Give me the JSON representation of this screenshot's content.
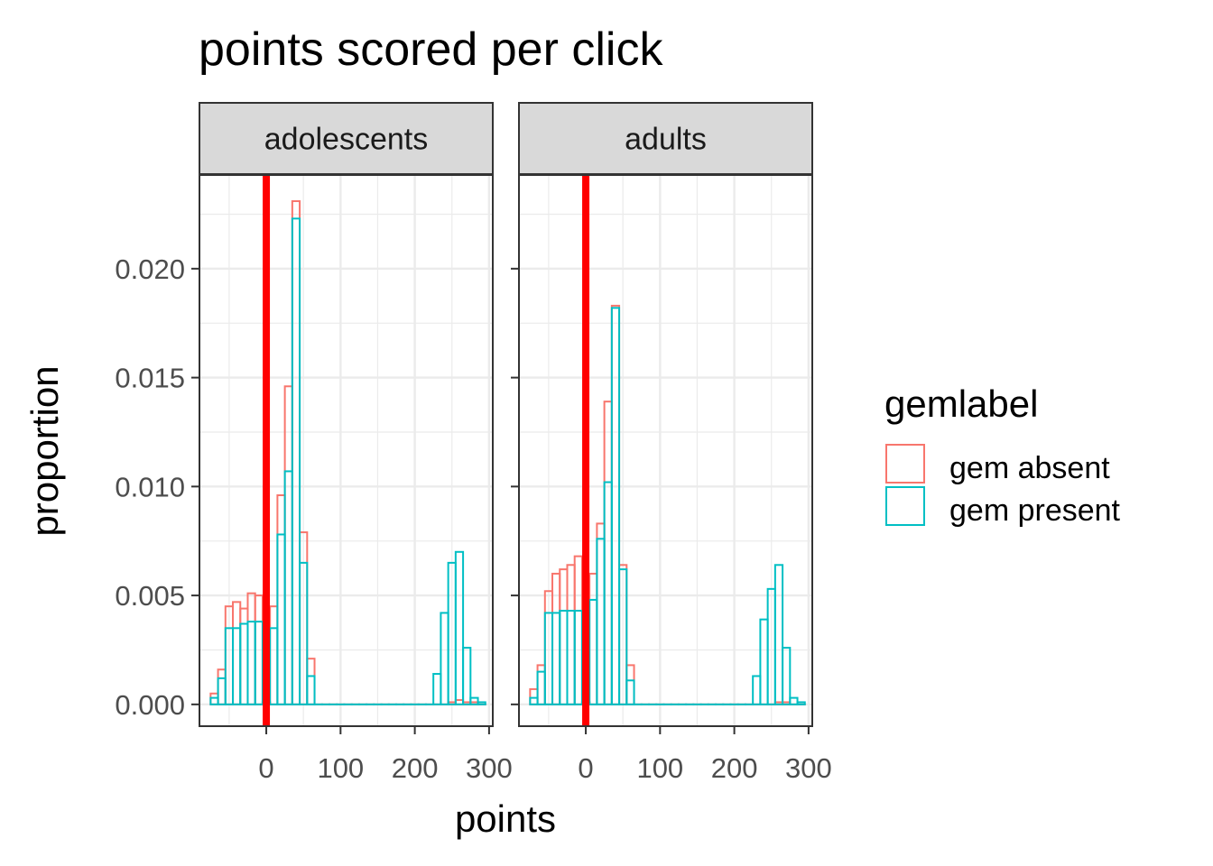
{
  "chart_data": {
    "type": "bar",
    "subtype": "faceted step histogram",
    "title": "points scored per click",
    "xlabel": "points",
    "ylabel": "proportion",
    "xlim": [
      -90,
      305
    ],
    "ylim": [
      -0.001,
      0.0243
    ],
    "x_ticks": [
      0,
      100,
      200,
      300
    ],
    "x_tick_labels": [
      "0",
      "100",
      "200",
      "300"
    ],
    "y_ticks": [
      0.0,
      0.005,
      0.01,
      0.015,
      0.02
    ],
    "y_tick_labels": [
      "0.000",
      "0.005",
      "0.010",
      "0.015",
      "0.020"
    ],
    "grid": true,
    "reference_line": {
      "x": 0,
      "color": "#ff0000"
    },
    "bin_width": 10,
    "bin_centers": [
      -70,
      -60,
      -50,
      -40,
      -30,
      -20,
      -10,
      0,
      10,
      20,
      30,
      40,
      50,
      60,
      70,
      80,
      90,
      100,
      110,
      120,
      130,
      140,
      150,
      160,
      170,
      180,
      190,
      200,
      210,
      220,
      230,
      240,
      250,
      260,
      270,
      280,
      290
    ],
    "legend": {
      "title": "gemlabel",
      "position": "right",
      "entries": [
        {
          "label": "gem absent",
          "color": "#F8766D"
        },
        {
          "label": "gem present",
          "color": "#00BFC4"
        }
      ]
    },
    "facets": [
      {
        "label": "adolescents",
        "series": [
          {
            "name": "gem absent",
            "color": "#F8766D",
            "values": [
              0.0005,
              0.0016,
              0.0045,
              0.0047,
              0.0044,
              0.0051,
              0.005,
              0.0001,
              0.0045,
              0.0096,
              0.0146,
              0.0231,
              0.0079,
              0.0021,
              0,
              0,
              0,
              0,
              0,
              0,
              0,
              0,
              0,
              0,
              0,
              0,
              0,
              0,
              0,
              0,
              0,
              0,
              0.0001,
              0.0002,
              0.0001,
              0.0001,
              0
            ]
          },
          {
            "name": "gem present",
            "color": "#00BFC4",
            "values": [
              0.0003,
              0.0012,
              0.0035,
              0.0035,
              0.0037,
              0.0038,
              0.0038,
              0.0001,
              0.0035,
              0.0078,
              0.0107,
              0.0223,
              0.0065,
              0.0013,
              0,
              0,
              0,
              0,
              0,
              0,
              0,
              0,
              0,
              0,
              0,
              0,
              0,
              0,
              0,
              0,
              0.0014,
              0.0042,
              0.0065,
              0.007,
              0.0026,
              0.0003,
              0.0001
            ]
          }
        ]
      },
      {
        "label": "adults",
        "series": [
          {
            "name": "gem absent",
            "color": "#F8766D",
            "values": [
              0.0007,
              0.0018,
              0.0052,
              0.006,
              0.0062,
              0.0064,
              0.0068,
              0.0001,
              0.006,
              0.0083,
              0.0139,
              0.0183,
              0.0064,
              0.0018,
              0,
              0,
              0,
              0,
              0,
              0,
              0,
              0,
              0,
              0,
              0,
              0,
              0,
              0,
              0,
              0,
              0,
              0,
              0,
              0.0001,
              0.0001,
              0,
              0
            ]
          },
          {
            "name": "gem present",
            "color": "#00BFC4",
            "values": [
              0.0003,
              0.0015,
              0.0042,
              0.0042,
              0.0043,
              0.0043,
              0.0043,
              0.0001,
              0.0048,
              0.0076,
              0.0102,
              0.0182,
              0.0062,
              0.0011,
              0,
              0,
              0,
              0,
              0,
              0,
              0,
              0,
              0,
              0,
              0,
              0,
              0,
              0,
              0,
              0,
              0.0013,
              0.0039,
              0.0053,
              0.0064,
              0.0026,
              0.0003,
              0.0001
            ]
          }
        ]
      }
    ]
  }
}
